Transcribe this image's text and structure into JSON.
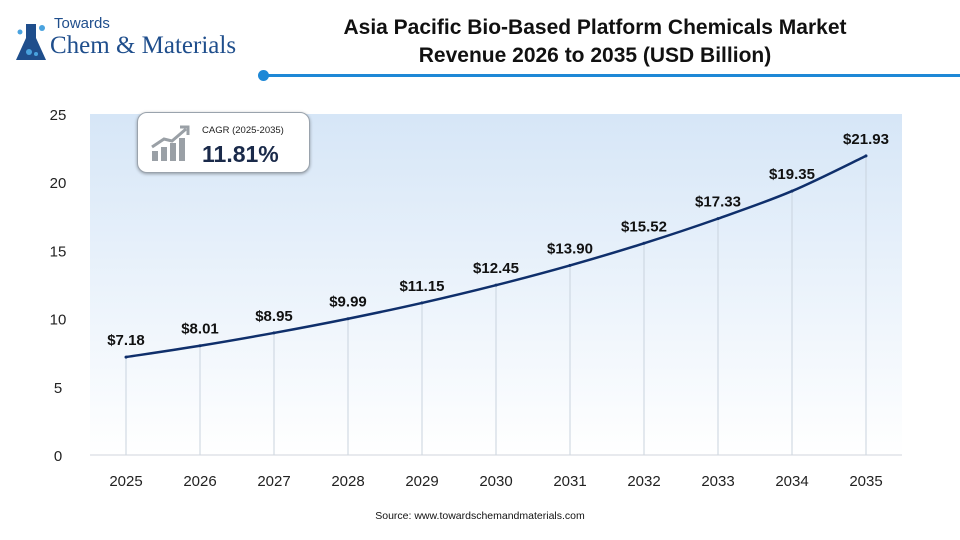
{
  "logo": {
    "line1": "Towards",
    "line2": "Chem & Materials"
  },
  "header": {
    "title_line1": "Asia Pacific Bio-Based Platform Chemicals Market",
    "title_line2": "Revenue 2026 to 2035 (USD Billion)"
  },
  "cagr": {
    "label": "CAGR (2025-2035)",
    "value": "11.81%"
  },
  "source": "Source: www.towardschemandmaterials.com",
  "colors": {
    "line": "#0f2f6b",
    "accent": "#1e88d6",
    "area_top": "#dbe9f8",
    "area_bottom": "#ffffff"
  },
  "chart_data": {
    "type": "line",
    "title": "Asia Pacific Bio-Based Platform Chemicals Market Revenue 2026 to 2035 (USD Billion)",
    "x": [
      "2025",
      "2026",
      "2027",
      "2028",
      "2029",
      "2030",
      "2031",
      "2032",
      "2033",
      "2034",
      "2035"
    ],
    "series": [
      {
        "values": [
          7.18,
          8.01,
          8.95,
          9.99,
          11.15,
          12.45,
          13.9,
          15.52,
          17.33,
          19.35,
          21.93
        ]
      }
    ],
    "data_labels": [
      "$7.18",
      "$8.01",
      "$8.95",
      "$9.99",
      "$11.15",
      "$12.45",
      "$13.90",
      "$15.52",
      "$17.33",
      "$19.35",
      "$21.93"
    ],
    "ylim": [
      0,
      25
    ],
    "yticks": [
      0,
      5,
      10,
      15,
      20,
      25
    ],
    "xlabel": "",
    "ylabel": "",
    "grid": "vertical lines at data points",
    "legend": "none"
  }
}
